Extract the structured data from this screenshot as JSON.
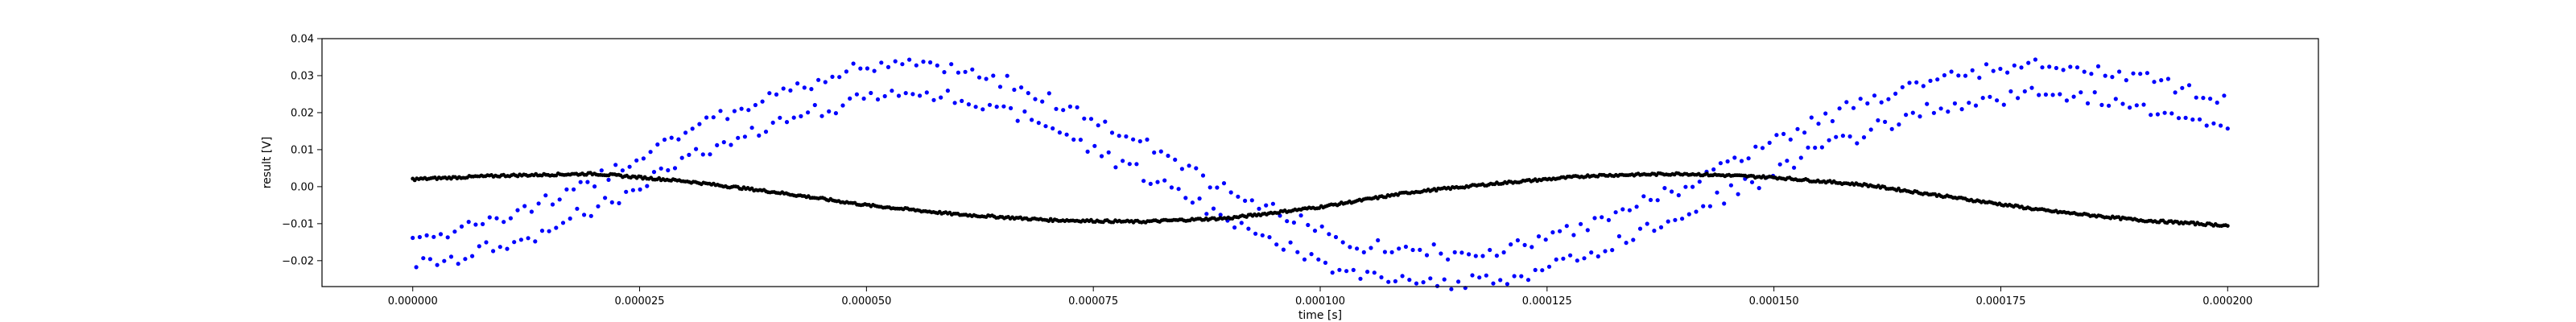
{
  "chart_data": {
    "type": "scatter",
    "title": "",
    "xlabel": "time [s]",
    "ylabel": "result [V]",
    "xlim": [
      -1e-05,
      0.00021
    ],
    "ylim": [
      -0.027,
      0.04
    ],
    "x_ticks": [
      0.0,
      2.5e-05,
      5e-05,
      7.5e-05,
      0.0001,
      0.000125,
      0.00015,
      0.000175,
      0.0002
    ],
    "x_tick_labels": [
      "0.000000",
      "0.000025",
      "0.000050",
      "0.000075",
      "0.000100",
      "0.000125",
      "0.000150",
      "0.000175",
      "0.000200"
    ],
    "y_ticks": [
      -0.02,
      -0.01,
      0.0,
      0.01,
      0.02,
      0.03,
      0.04
    ],
    "y_tick_labels": [
      "−0.02",
      "−0.01",
      "0.00",
      "0.01",
      "0.02",
      "0.03",
      "0.04"
    ],
    "grid": false,
    "legend": "none",
    "series": [
      {
        "color": "#0000ff",
        "marker": "dot",
        "x": [
          0.0,
          5e-06,
          1e-05,
          1.5e-05,
          2e-05,
          2.5e-05,
          3e-05,
          3.5e-05,
          4e-05,
          4.5e-05,
          5e-05,
          5.5e-05,
          6e-05,
          6.5e-05,
          7e-05,
          7.5e-05,
          8e-05,
          8.5e-05,
          9e-05,
          9.5e-05,
          0.0001,
          0.000105,
          0.00011,
          0.000115,
          0.00012,
          0.000125,
          0.00013,
          0.000135,
          0.00014,
          0.000145,
          0.00015,
          0.000155,
          0.00016,
          0.000165,
          0.00017,
          0.000175,
          0.00018,
          0.000185,
          0.00019,
          0.000195,
          0.0002
        ],
        "y": [
          -0.018,
          -0.015,
          -0.012,
          -0.008,
          -0.002,
          0.004,
          0.011,
          0.016,
          0.021,
          0.025,
          0.028,
          0.029,
          0.028,
          0.025,
          0.02,
          0.014,
          0.008,
          0.002,
          -0.005,
          -0.011,
          -0.016,
          -0.02,
          -0.022,
          -0.022,
          -0.021,
          -0.018,
          -0.014,
          -0.009,
          -0.004,
          0.002,
          0.008,
          0.014,
          0.019,
          0.023,
          0.026,
          0.028,
          0.029,
          0.028,
          0.026,
          0.023,
          0.019
        ],
        "band": 0.005
      },
      {
        "color": "#000000",
        "marker": "dot",
        "x": [
          0.0,
          1e-05,
          2e-05,
          3e-05,
          4e-05,
          5e-05,
          6e-05,
          7e-05,
          8e-05,
          9e-05,
          0.0001,
          0.00011,
          0.00012,
          0.00013,
          0.00014,
          0.00015,
          0.00016,
          0.00017,
          0.00018,
          0.00019,
          0.0002
        ],
        "y": [
          0.002,
          0.003,
          0.0035,
          0.0015,
          -0.0015,
          -0.005,
          -0.0075,
          -0.009,
          -0.0095,
          -0.0085,
          -0.0055,
          -0.0015,
          0.001,
          0.003,
          0.0035,
          0.0025,
          0.0005,
          -0.003,
          -0.0065,
          -0.009,
          -0.0105
        ]
      }
    ]
  }
}
